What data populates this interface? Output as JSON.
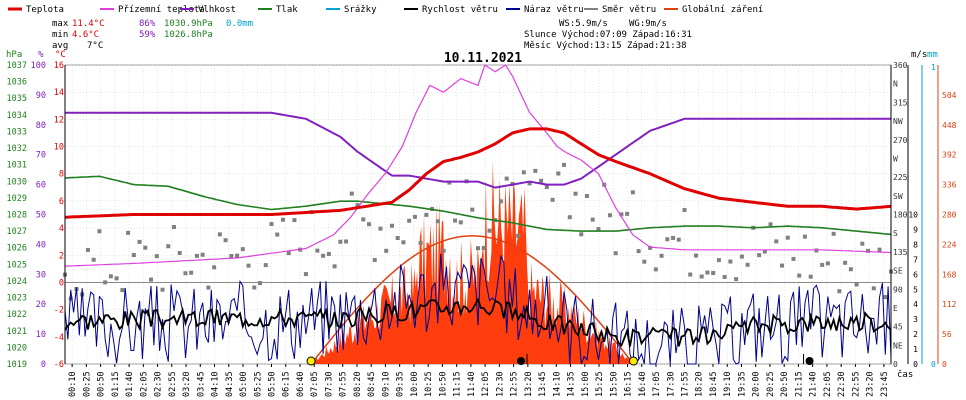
{
  "legend": [
    {
      "label": "Teplota",
      "color": "#e00000"
    },
    {
      "label": "Přízemní teplota",
      "color": "#e040e0"
    },
    {
      "label": "Vlhkost",
      "color": "#8020c0"
    },
    {
      "label": "Tlak",
      "color": "#208020"
    },
    {
      "label": "Srážky",
      "color": "#00a0d0"
    },
    {
      "label": "Rychlost větru",
      "color": "#000000"
    },
    {
      "label": "Náraz větru",
      "color": "#000090"
    },
    {
      "label": "Směr větru",
      "color": "#808080"
    },
    {
      "label": "Globální záření",
      "color": "#e04010"
    }
  ],
  "stats": {
    "max_label": "max",
    "max_temp": "11.4°C",
    "max_hum": "86%",
    "max_press": "1030.9hPa",
    "max_rain": "0.0mm",
    "min_label": "min",
    "min_temp": "4.6°C",
    "min_hum": "59%",
    "min_press": "1026.8hPa",
    "avg_label": "avg",
    "avg_temp": "7°C"
  },
  "info": {
    "ws": "WS:5.9m/s",
    "wg": "WG:9m/s",
    "sun": "Slunce Východ:07:09  Západ:16:31",
    "moon": "Měsíc  Východ:13:15  Západ:21:38"
  },
  "colors": {
    "temp": "#e00000",
    "dew": "#e040e0",
    "hum": "#8020c0",
    "press": "#208020",
    "rain": "#00a0d0",
    "wind": "#000000",
    "gust": "#000090",
    "dir": "#808080",
    "rad": "#ff3300",
    "rad_curve": "#e04010",
    "grid": "#cccccc"
  },
  "chart_data": {
    "type": "line",
    "title": "10.11.2021",
    "xlabel": "čas",
    "x_ticks": [
      "00:10",
      "00:25",
      "00:50",
      "01:15",
      "01:40",
      "02:05",
      "02:30",
      "02:55",
      "03:20",
      "03:45",
      "04:10",
      "04:35",
      "05:00",
      "05:25",
      "05:50",
      "06:15",
      "06:40",
      "07:05",
      "07:30",
      "07:55",
      "08:20",
      "08:45",
      "09:10",
      "09:35",
      "10:00",
      "10:25",
      "10:50",
      "11:15",
      "11:40",
      "12:05",
      "12:30",
      "12:55",
      "13:20",
      "13:45",
      "14:10",
      "14:35",
      "15:00",
      "15:25",
      "15:50",
      "16:15",
      "16:40",
      "17:05",
      "17:30",
      "17:55",
      "18:20",
      "18:45",
      "19:10",
      "19:35",
      "20:00",
      "20:25",
      "20:50",
      "21:15",
      "21:40",
      "22:05",
      "22:30",
      "22:55",
      "23:20",
      "23:45"
    ],
    "axes": {
      "pressure": {
        "unit": "hPa",
        "range": [
          1019,
          1037
        ],
        "ticks": [
          "1037",
          "1036",
          "1035",
          "1034",
          "1033",
          "1032",
          "1031",
          "1030",
          "1029",
          "1028",
          "1027",
          "1026",
          "1025",
          "1024",
          "1023",
          "1022",
          "1021",
          "1020",
          "1019"
        ]
      },
      "humidity": {
        "unit": "%",
        "range": [
          0,
          100
        ],
        "ticks": [
          "100",
          "90",
          "80",
          "70",
          "60",
          "50",
          "40",
          "30",
          "20",
          "10",
          "0"
        ]
      },
      "temperature": {
        "unit": "°C",
        "range": [
          -6,
          16
        ],
        "ticks": [
          "16",
          "14",
          "12",
          "10",
          "8",
          "6",
          "4",
          "2",
          "0",
          "-2",
          "-4",
          "-6"
        ]
      },
      "direction": {
        "unit": "",
        "ticks": [
          "360",
          "N",
          "315",
          "NW",
          "270",
          "W",
          "225",
          "SW",
          "180",
          "S",
          "135",
          "SE",
          "90",
          "E",
          "45",
          "NE",
          "0"
        ]
      },
      "wind": {
        "unit": "m/s",
        "range": [
          0,
          10
        ],
        "ticks": [
          "10",
          "9",
          "8",
          "7",
          "6",
          "5",
          "4",
          "3",
          "2",
          "1",
          "0"
        ]
      },
      "rain": {
        "unit": "mm",
        "ticks": [
          "1",
          "0"
        ]
      },
      "radiation": {
        "unit": "",
        "range": [
          0,
          560
        ],
        "ticks": [
          "504",
          "448",
          "392",
          "336",
          "280",
          "224",
          "168",
          "112",
          "56",
          "0"
        ]
      }
    },
    "series": [
      {
        "name": "Teplota",
        "unit": "°C",
        "t": [
          0,
          2,
          6,
          8,
          9.5,
          10,
          10.5,
          11,
          11.5,
          12,
          12.5,
          13,
          13.5,
          14,
          14.5,
          15,
          15.5,
          16,
          17,
          18,
          19,
          20,
          21,
          22,
          23,
          24
        ],
        "values": [
          4.8,
          5.0,
          5.0,
          5.3,
          5.9,
          6.8,
          8.0,
          8.9,
          9.2,
          9.6,
          10.2,
          11.0,
          11.3,
          11.3,
          11.0,
          10.2,
          9.4,
          8.9,
          8.0,
          6.9,
          6.2,
          5.9,
          5.6,
          5.6,
          5.4,
          5.6
        ]
      },
      {
        "name": "Přízemní teplota",
        "unit": "°C",
        "t": [
          0,
          2,
          5,
          7,
          7.8,
          8.3,
          8.8,
          9.3,
          9.8,
          10.2,
          10.6,
          11,
          11.5,
          12,
          12.2,
          12.5,
          12.8,
          13,
          13.5,
          14,
          14.3,
          14.6,
          15,
          15.5,
          16,
          16.5,
          17,
          18,
          20,
          22,
          24
        ],
        "values": [
          1.2,
          1.4,
          1.8,
          2.5,
          3.5,
          4.8,
          6.5,
          8.0,
          10.0,
          12.5,
          14.5,
          14.0,
          15.0,
          14.5,
          16.0,
          15.5,
          16.0,
          15.2,
          12.5,
          11.0,
          10.0,
          9.5,
          9.0,
          8.0,
          5.5,
          3.5,
          2.6,
          2.4,
          2.4,
          2.4,
          2.2
        ]
      },
      {
        "name": "Vlhkost",
        "unit": "%",
        "t": [
          0,
          3,
          5,
          6,
          7,
          8,
          8.5,
          9,
          9.5,
          10,
          10.5,
          11,
          11.5,
          12,
          12.5,
          13,
          13.5,
          14,
          14.5,
          15,
          15.5,
          16,
          16.5,
          17,
          18,
          19,
          20,
          21,
          22,
          23,
          24
        ],
        "values": [
          84,
          84,
          84,
          84,
          82,
          76,
          71,
          67,
          63,
          63,
          62,
          61,
          61,
          61,
          59,
          60,
          61,
          60,
          60,
          62,
          66,
          70,
          74,
          78,
          82,
          82,
          82,
          82,
          82,
          82,
          82
        ]
      },
      {
        "name": "Tlak",
        "unit": "hPa",
        "t": [
          0,
          1,
          2,
          3,
          4,
          5,
          6,
          7,
          8,
          8.5,
          9,
          10,
          11,
          12,
          13,
          14,
          15,
          16,
          17,
          18,
          19,
          20,
          21,
          22,
          23,
          24
        ],
        "values": [
          1030.2,
          1030.3,
          1029.8,
          1029.7,
          1029.1,
          1028.6,
          1028.3,
          1028.5,
          1028.8,
          1028.8,
          1028.7,
          1028.5,
          1028.2,
          1027.8,
          1027.5,
          1027.1,
          1027.0,
          1027.0,
          1027.2,
          1027.3,
          1027.3,
          1027.2,
          1027.3,
          1027.2,
          1027.0,
          1026.8
        ]
      },
      {
        "name": "Srážky",
        "unit": "mm",
        "values": [
          0.0
        ]
      },
      {
        "name": "Rychlost větru",
        "unit": "m/s",
        "base": [
          [
            0,
            2.9
          ],
          [
            6,
            3.1
          ],
          [
            8,
            3.0
          ],
          [
            10,
            3.6
          ],
          [
            12,
            4.0
          ],
          [
            13,
            3.4
          ],
          [
            14,
            2.8
          ],
          [
            16,
            1.8
          ],
          [
            17,
            1.8
          ],
          [
            19,
            1.8
          ],
          [
            20,
            2.6
          ],
          [
            22,
            2.8
          ],
          [
            24,
            2.8
          ]
        ]
      },
      {
        "name": "Náraz větru",
        "unit": "m/s",
        "base": [
          [
            0,
            2.2
          ],
          [
            6,
            2.6
          ],
          [
            8,
            3.0
          ],
          [
            10,
            4.2
          ],
          [
            12,
            4.8
          ],
          [
            13,
            4.0
          ],
          [
            14,
            3.0
          ],
          [
            16,
            1.2
          ],
          [
            17,
            0.8
          ],
          [
            19,
            1.2
          ],
          [
            20,
            2.4
          ],
          [
            22,
            2.4
          ],
          [
            24,
            2.6
          ]
        ]
      },
      {
        "name": "Směr větru",
        "unit": "°",
        "base": [
          [
            0,
            120
          ],
          [
            6,
            135
          ],
          [
            8,
            165
          ],
          [
            10,
            175
          ],
          [
            12,
            180
          ],
          [
            14,
            195
          ],
          [
            15,
            200
          ],
          [
            16,
            170
          ],
          [
            18,
            150
          ],
          [
            20,
            140
          ],
          [
            24,
            120
          ]
        ]
      },
      {
        "name": "Globální záření",
        "unit": "W/m²",
        "peak": 240,
        "sunrise": 7.15,
        "sunset": 16.52,
        "observed_peak": 384
      }
    ],
    "markers": {
      "sunrise": "07:09",
      "sunset": "16:31",
      "moonrise": "13:15",
      "moonset": "21:38"
    }
  }
}
